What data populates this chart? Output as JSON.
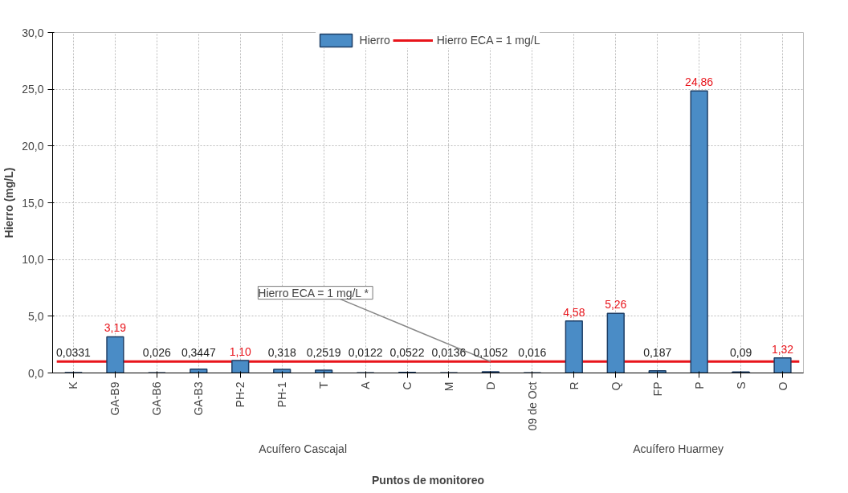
{
  "chart_data": {
    "type": "bar",
    "xlabel": "Puntos de monitoreo",
    "ylabel": "Hierro (mg/L)",
    "categories": [
      "K",
      "GA-B9",
      "GA-B6",
      "GA-B3",
      "PH-2",
      "PH-1",
      "T",
      "A",
      "C",
      "M",
      "D",
      "09 de Oct",
      "R",
      "Q",
      "FP",
      "P",
      "S",
      "O"
    ],
    "series": [
      {
        "name": "Hierro",
        "color": "#4a8cc6",
        "values": [
          0.0331,
          3.19,
          0.026,
          0.3447,
          1.1,
          0.318,
          0.2519,
          0.0122,
          0.0522,
          0.0136,
          0.1052,
          0.016,
          4.58,
          5.26,
          0.187,
          24.86,
          0.09,
          1.32
        ],
        "value_labels": [
          "0,0331",
          "3,19",
          "0,026",
          "0,3447",
          "1,10",
          "0,318",
          "0,2519",
          "0,0122",
          "0,0522",
          "0,0136",
          "0,1052",
          "0,016",
          "4,58",
          "5,26",
          "0,187",
          "24,86",
          "0,09",
          "1,32"
        ]
      }
    ],
    "ref_lines": [
      {
        "axis": "y",
        "value": 1,
        "label": "Hierro ECA = 1 mg/L",
        "color": "#e8141b"
      }
    ],
    "annotations": [
      {
        "text": "Hierro ECA = 1 mg/L  *",
        "x": "D",
        "y": 1
      },
      "Acuífero Cascajal",
      "Acuífero Huarmey"
    ],
    "ylim": [
      0,
      30
    ],
    "yticks": [
      {
        "value": 0,
        "label": "0,0"
      },
      {
        "value": 5,
        "label": "5,0"
      },
      {
        "value": 10,
        "label": "10,0"
      },
      {
        "value": 15,
        "label": "15,0"
      },
      {
        "value": 20,
        "label": "20,0"
      },
      {
        "value": 25,
        "label": "25,0"
      },
      {
        "value": 30,
        "label": "30,0"
      }
    ],
    "grid": true,
    "legend": "top"
  }
}
